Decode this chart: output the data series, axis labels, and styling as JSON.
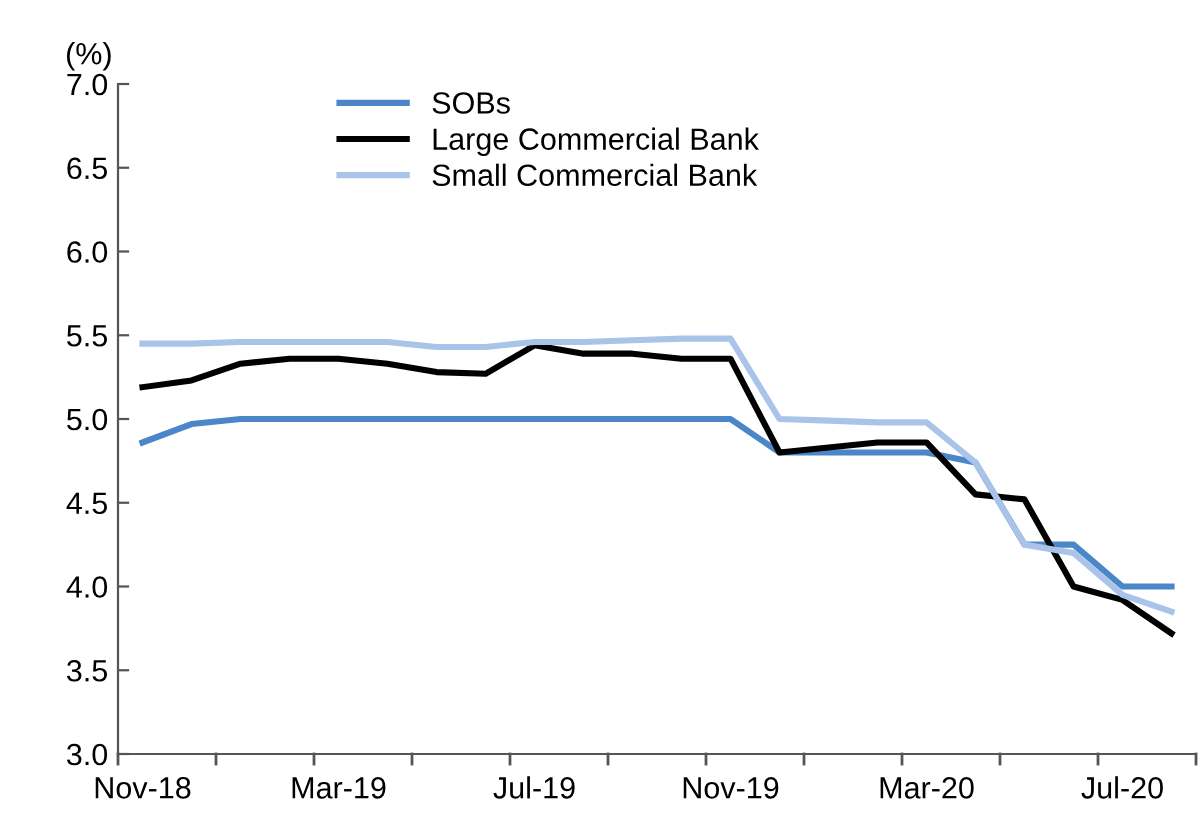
{
  "chart_data": {
    "type": "line",
    "ylabel": "(%)",
    "categories": [
      "Nov-18",
      null,
      null,
      null,
      "Mar-19",
      null,
      null,
      null,
      "Jul-19",
      null,
      null,
      null,
      "Nov-19",
      null,
      null,
      null,
      "Mar-20",
      null,
      null,
      null,
      "Jul-20",
      null
    ],
    "series": [
      {
        "name": "SOBs",
        "color": "#4a86c8",
        "values": [
          4.86,
          4.97,
          5.0,
          5.0,
          5.0,
          5.0,
          5.0,
          5.0,
          5.0,
          5.0,
          5.0,
          5.0,
          5.0,
          4.8,
          4.8,
          4.8,
          4.8,
          4.74,
          4.25,
          4.25,
          4.0,
          4.0
        ]
      },
      {
        "name": "Large Commercial Bank",
        "color": "#000000",
        "values": [
          5.19,
          5.23,
          5.33,
          5.36,
          5.36,
          5.33,
          5.28,
          5.27,
          5.44,
          5.39,
          5.39,
          5.36,
          5.36,
          4.8,
          4.83,
          4.86,
          4.86,
          4.55,
          4.52,
          4.0,
          3.92,
          3.72
        ]
      },
      {
        "name": "Small Commercial Bank",
        "color": "#a9c4e8",
        "values": [
          5.45,
          5.45,
          5.46,
          5.46,
          5.46,
          5.46,
          5.43,
          5.43,
          5.46,
          5.46,
          5.47,
          5.48,
          5.48,
          5.0,
          4.99,
          4.98,
          4.98,
          4.74,
          4.25,
          4.2,
          3.95,
          3.85
        ]
      }
    ],
    "ylim": [
      3.0,
      7.0
    ],
    "yticks": [
      {
        "value": 3.0,
        "label": "3.0"
      },
      {
        "value": 3.5,
        "label": "3.5"
      },
      {
        "value": 4.0,
        "label": "4.0"
      },
      {
        "value": 4.5,
        "label": "4.5"
      },
      {
        "value": 5.0,
        "label": "5.0"
      },
      {
        "value": 5.5,
        "label": "5.5"
      },
      {
        "value": 6.0,
        "label": "6.0"
      },
      {
        "value": 6.5,
        "label": "6.5"
      },
      {
        "value": 7.0,
        "label": "7.0"
      }
    ],
    "legend": "top",
    "grid": false,
    "marker": "none",
    "line_style": "solid"
  }
}
